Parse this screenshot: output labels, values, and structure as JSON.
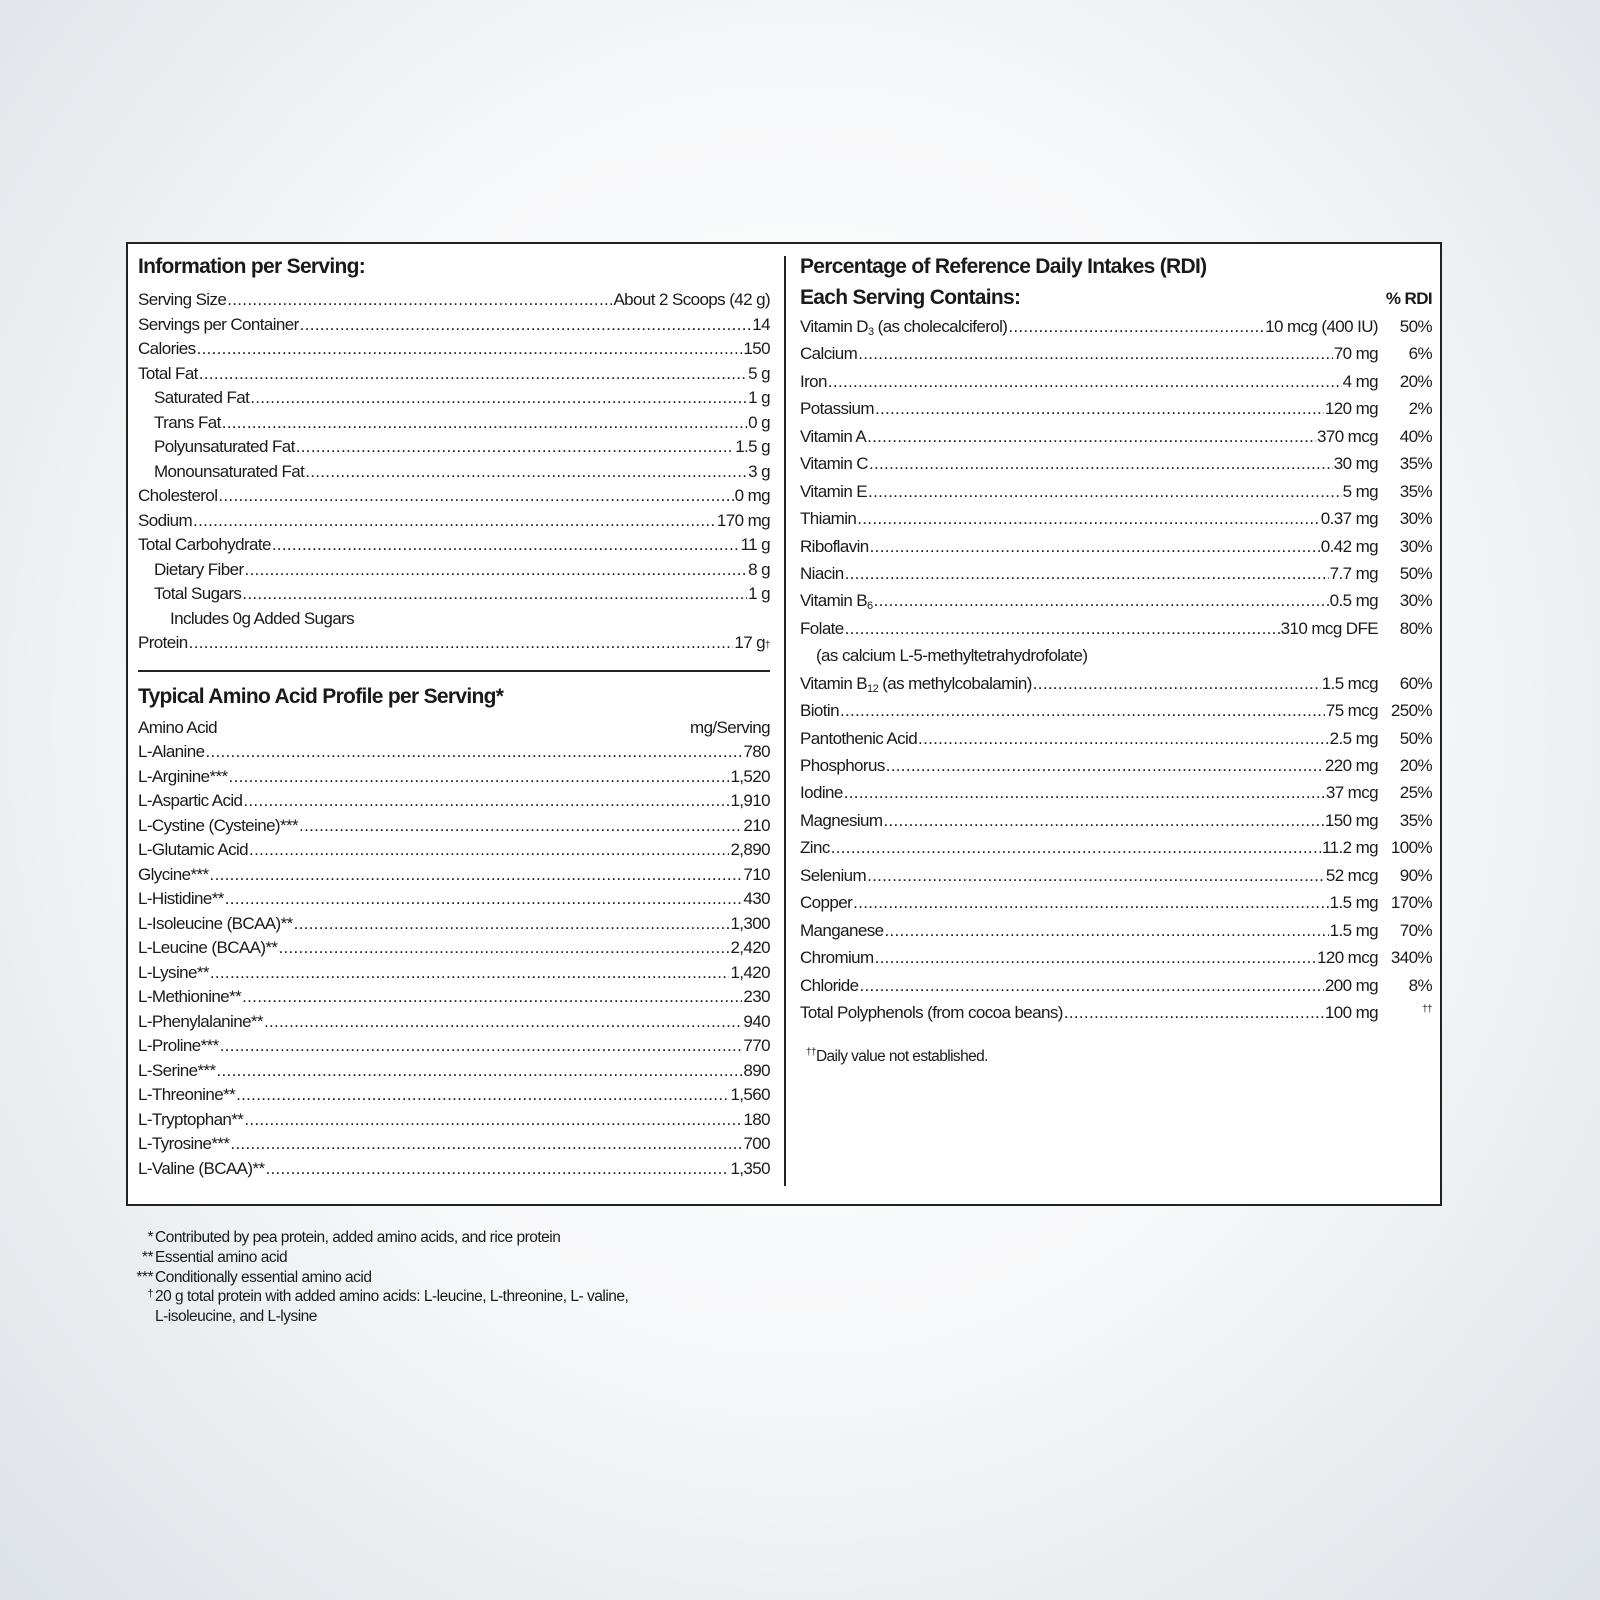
{
  "serving_info": {
    "title": "Information per Serving:",
    "rows": [
      {
        "label": "Serving Size",
        "value": "About 2 Scoops (42 g)",
        "indent": 0
      },
      {
        "label": "Servings per Container",
        "value": "14",
        "indent": 0
      },
      {
        "label": "Calories",
        "value": "150",
        "indent": 0
      },
      {
        "label": "Total Fat",
        "value": "5 g",
        "indent": 0
      },
      {
        "label": "Saturated Fat",
        "value": "1 g",
        "indent": 1
      },
      {
        "label": "Trans Fat",
        "value": "0 g",
        "indent": 1
      },
      {
        "label": "Polyunsaturated Fat",
        "value": "1.5 g",
        "indent": 1
      },
      {
        "label": "Monounsaturated Fat",
        "value": "3 g",
        "indent": 1
      },
      {
        "label": "Cholesterol",
        "value": "0 mg",
        "indent": 0
      },
      {
        "label": "Sodium",
        "value": "170 mg",
        "indent": 0
      },
      {
        "label": "Total Carbohydrate",
        "value": "11 g",
        "indent": 0
      },
      {
        "label": "Dietary Fiber",
        "value": "8 g",
        "indent": 1
      },
      {
        "label": "Total Sugars",
        "value": "1 g",
        "indent": 1
      },
      {
        "label": "Includes 0g Added Sugars",
        "value": null,
        "indent": 2
      },
      {
        "label": "Protein",
        "value": "17 g",
        "mark": "†",
        "indent": 0
      }
    ]
  },
  "amino": {
    "title": "Typical Amino Acid Profile per Serving*",
    "col_name": "Amino Acid",
    "col_unit": "mg/Serving",
    "rows": [
      {
        "label": "L-Alanine",
        "value": "780"
      },
      {
        "label": "L-Arginine***",
        "value": "1,520"
      },
      {
        "label": "L-Aspartic Acid",
        "value": "1,910"
      },
      {
        "label": "L-Cystine (Cysteine)***",
        "value": "210"
      },
      {
        "label": "L-Glutamic Acid",
        "value": "2,890"
      },
      {
        "label": "Glycine***",
        "value": "710"
      },
      {
        "label": "L-Histidine**",
        "value": "430"
      },
      {
        "label": "L-Isoleucine (BCAA)**",
        "value": "1,300"
      },
      {
        "label": "L-Leucine (BCAA)**",
        "value": "2,420"
      },
      {
        "label": "L-Lysine**",
        "value": "1,420"
      },
      {
        "label": "L-Methionine**",
        "value": "230"
      },
      {
        "label": "L-Phenylalanine**",
        "value": "940"
      },
      {
        "label": "L-Proline***",
        "value": "770"
      },
      {
        "label": "L-Serine***",
        "value": "890"
      },
      {
        "label": "L-Threonine**",
        "value": "1,560"
      },
      {
        "label": "L-Tryptophan**",
        "value": "180"
      },
      {
        "label": "L-Tyrosine***",
        "value": "700"
      },
      {
        "label": "L-Valine (BCAA)**",
        "value": "1,350"
      }
    ]
  },
  "rdi": {
    "title": "Percentage of Reference Daily Intakes (RDI)",
    "subtitle": "Each Serving Contains:",
    "col_pct": "% RDI",
    "rows": [
      {
        "label": "Vitamin D",
        "sub": "3",
        "suffix": " (as cholecalciferol)",
        "amount": "10 mcg (400 IU)",
        "pct": "50%"
      },
      {
        "label": "Calcium",
        "amount": "70 mg",
        "pct": "6%"
      },
      {
        "label": "Iron",
        "amount": "4 mg",
        "pct": "20%"
      },
      {
        "label": "Potassium",
        "amount": "120 mg",
        "pct": "2%"
      },
      {
        "label": "Vitamin A",
        "amount": "370 mcg",
        "pct": "40%"
      },
      {
        "label": "Vitamin C",
        "amount": "30 mg",
        "pct": "35%"
      },
      {
        "label": "Vitamin E",
        "amount": "5 mg",
        "pct": "35%"
      },
      {
        "label": "Thiamin",
        "amount": "0.37 mg",
        "pct": "30%"
      },
      {
        "label": "Riboflavin",
        "amount": "0.42 mg",
        "pct": "30%"
      },
      {
        "label": "Niacin",
        "amount": "7.7 mg",
        "pct": "50%"
      },
      {
        "label": "Vitamin B",
        "sub": "6",
        "amount": "0.5 mg",
        "pct": "30%"
      },
      {
        "label": "Folate",
        "amount": "310 mcg DFE",
        "pct": "80%"
      },
      {
        "label": "(as calcium L-5-methyltetrahydrofolate)",
        "note": true
      },
      {
        "label": "Vitamin B",
        "sub": "12",
        "suffix": " (as methylcobalamin)",
        "amount": "1.5 mcg",
        "pct": "60%"
      },
      {
        "label": "Biotin",
        "amount": "75 mcg",
        "pct": "250%"
      },
      {
        "label": "Pantothenic Acid",
        "amount": "2.5 mg",
        "pct": "50%"
      },
      {
        "label": "Phosphorus",
        "amount": "220 mg",
        "pct": "20%"
      },
      {
        "label": "Iodine",
        "amount": "37 mcg",
        "pct": "25%"
      },
      {
        "label": "Magnesium",
        "amount": "150 mg",
        "pct": "35%"
      },
      {
        "label": "Zinc",
        "amount": "11.2 mg",
        "pct": "100%"
      },
      {
        "label": "Selenium",
        "amount": "52 mcg",
        "pct": "90%"
      },
      {
        "label": "Copper",
        "amount": "1.5 mg",
        "pct": "170%"
      },
      {
        "label": "Manganese",
        "amount": "1.5 mg",
        "pct": "70%"
      },
      {
        "label": "Chromium",
        "amount": "120 mcg",
        "pct": "340%"
      },
      {
        "label": "Chloride",
        "amount": "200 mg",
        "pct": "8%"
      },
      {
        "label": "Total Polyphenols (from cocoa beans)",
        "amount": "100 mg",
        "pct_mark": "††"
      }
    ],
    "note_mark": "††",
    "note": "Daily value not established."
  },
  "footnotes": [
    {
      "mark": "*",
      "text": "Contributed by pea protein, added amino acids, and rice protein"
    },
    {
      "mark": "**",
      "text": "Essential amino acid"
    },
    {
      "mark": "***",
      "text": "Conditionally essential amino acid"
    },
    {
      "mark": "†",
      "text": "20 g total protein with added amino acids: L-leucine, L-threonine, L- valine,"
    },
    {
      "mark": "",
      "text": "L-isoleucine, and L-lysine"
    }
  ]
}
